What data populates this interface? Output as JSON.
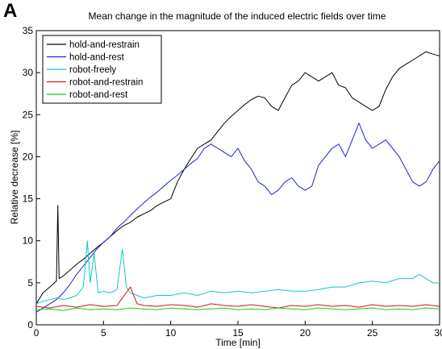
{
  "panel_label": "A",
  "chart_data": {
    "type": "line",
    "title": "Mean change in the magnitude of the induced electric fields over time",
    "xlabel": "Time [min]",
    "ylabel": "Relative decrease [%]",
    "xlim": [
      0,
      30
    ],
    "ylim": [
      0,
      35
    ],
    "xticks": [
      0,
      5,
      10,
      15,
      20,
      25,
      30
    ],
    "yticks": [
      0,
      5,
      10,
      15,
      20,
      25,
      30,
      35
    ],
    "grid": false,
    "legend_position": "top-left",
    "series": [
      {
        "name": "hold-and-restrain",
        "color": "#000000",
        "x": [
          0,
          0.5,
          1,
          1.5,
          1.6,
          1.7,
          2,
          2.5,
          3,
          3.5,
          4,
          4.5,
          5,
          5.5,
          6,
          6.5,
          7,
          7.5,
          8,
          8.5,
          9,
          9.5,
          10,
          10.5,
          11,
          11.5,
          12,
          12.5,
          13,
          13.5,
          14,
          14.5,
          15,
          15.5,
          16,
          16.5,
          17,
          17.5,
          18,
          18.5,
          19,
          19.5,
          20,
          20.5,
          21,
          21.5,
          22,
          22.5,
          23,
          23.5,
          24,
          24.5,
          25,
          25.5,
          26,
          26.5,
          27,
          27.5,
          28,
          28.5,
          29,
          29.5,
          30
        ],
        "y": [
          2.5,
          3.8,
          4.5,
          5.2,
          14.2,
          5.5,
          5.8,
          6.5,
          7.2,
          7.8,
          8.5,
          9.2,
          9.8,
          10.5,
          11.2,
          11.8,
          12.2,
          12.8,
          13.2,
          13.6,
          14.2,
          14.6,
          15.0,
          17.0,
          18.5,
          19.8,
          21.0,
          21.5,
          22.0,
          23.0,
          24.0,
          24.8,
          25.5,
          26.2,
          26.8,
          27.2,
          27.0,
          26.0,
          25.5,
          27.0,
          28.5,
          29.0,
          30.0,
          29.5,
          29.0,
          29.5,
          30.0,
          28.5,
          28.2,
          27.0,
          26.5,
          26.0,
          25.5,
          26.0,
          28.0,
          29.5,
          30.5,
          31.0,
          31.5,
          32.0,
          32.5,
          32.2,
          32.0
        ]
      },
      {
        "name": "hold-and-rest",
        "color": "#2020d0",
        "x": [
          0,
          0.5,
          1,
          1.5,
          2,
          2.5,
          3,
          3.5,
          4,
          4.5,
          5,
          5.5,
          6,
          6.5,
          7,
          7.5,
          8,
          8.5,
          9,
          9.5,
          10,
          10.5,
          11,
          11.5,
          12,
          12.5,
          13,
          13.5,
          14,
          14.5,
          15,
          15.5,
          16,
          16.5,
          17,
          17.5,
          18,
          18.5,
          19,
          19.5,
          20,
          20.5,
          21,
          21.5,
          22,
          22.5,
          23,
          23.5,
          24,
          24.5,
          25,
          25.5,
          26,
          26.5,
          27,
          27.5,
          28,
          28.5,
          29,
          29.5,
          30
        ],
        "y": [
          1.5,
          2.0,
          2.5,
          3.0,
          3.8,
          4.8,
          6.0,
          7.0,
          8.0,
          9.0,
          9.8,
          10.5,
          11.5,
          12.2,
          13.0,
          13.8,
          14.5,
          15.2,
          15.8,
          16.5,
          17.2,
          17.8,
          18.5,
          19.2,
          19.8,
          21.0,
          21.5,
          21.0,
          20.5,
          20.0,
          21.0,
          19.5,
          18.5,
          17.0,
          16.5,
          15.5,
          16.0,
          17.0,
          17.5,
          16.5,
          16.0,
          16.5,
          19.0,
          20.0,
          21.0,
          21.5,
          20.0,
          22.0,
          24.0,
          22.0,
          21.0,
          21.5,
          22.0,
          21.0,
          20.0,
          18.5,
          17.0,
          16.5,
          17.0,
          18.5,
          19.5
        ]
      },
      {
        "name": "robot-freely",
        "color": "#10c8c8",
        "x": [
          0,
          0.5,
          1,
          1.5,
          2,
          2.5,
          3,
          3.5,
          3.8,
          4.0,
          4.3,
          4.6,
          5,
          5.5,
          6,
          6.4,
          6.7,
          7,
          7.5,
          8,
          9,
          10,
          11,
          12,
          13,
          14,
          15,
          16,
          17,
          18,
          19,
          20,
          21,
          22,
          23,
          24,
          25,
          26,
          27,
          28,
          28.5,
          29,
          29.5,
          30
        ],
        "y": [
          2.5,
          2.8,
          3.0,
          3.2,
          3.0,
          3.2,
          3.5,
          4.5,
          10.0,
          5.0,
          8.5,
          3.8,
          4.0,
          3.8,
          4.2,
          9.0,
          4.5,
          3.8,
          3.5,
          3.2,
          3.5,
          3.5,
          3.8,
          3.5,
          4.0,
          3.8,
          4.0,
          3.8,
          4.0,
          4.2,
          4.0,
          4.0,
          4.2,
          4.5,
          4.5,
          5.0,
          5.2,
          5.0,
          5.5,
          5.5,
          6.0,
          5.5,
          5.0,
          5.0
        ]
      },
      {
        "name": "robot-and-restrain",
        "color": "#e01010",
        "x": [
          0,
          1,
          2,
          3,
          4,
          5,
          6,
          7,
          7.5,
          8,
          9,
          10,
          11,
          12,
          13,
          14,
          15,
          16,
          17,
          18,
          19,
          20,
          21,
          22,
          23,
          24,
          25,
          26,
          27,
          28,
          29,
          30
        ],
        "y": [
          2.2,
          2.0,
          2.3,
          2.1,
          2.4,
          2.2,
          2.3,
          4.5,
          2.5,
          2.3,
          2.2,
          2.4,
          2.3,
          2.1,
          2.5,
          2.3,
          2.2,
          2.4,
          2.2,
          2.0,
          2.3,
          2.2,
          2.4,
          2.2,
          2.3,
          2.1,
          2.4,
          2.2,
          2.3,
          2.2,
          2.4,
          2.2
        ]
      },
      {
        "name": "robot-and-rest",
        "color": "#10d010",
        "x": [
          0,
          1,
          2,
          3,
          4,
          5,
          6,
          7,
          8,
          9,
          10,
          11,
          12,
          13,
          14,
          15,
          16,
          17,
          18,
          19,
          20,
          21,
          22,
          23,
          24,
          25,
          26,
          27,
          28,
          29,
          30
        ],
        "y": [
          1.8,
          1.9,
          1.7,
          2.0,
          1.8,
          1.9,
          1.8,
          2.0,
          1.9,
          1.8,
          2.0,
          1.9,
          1.8,
          1.9,
          2.0,
          1.8,
          1.9,
          1.8,
          2.0,
          1.9,
          1.8,
          2.0,
          1.9,
          1.8,
          1.9,
          2.0,
          1.8,
          1.9,
          1.8,
          2.0,
          1.9
        ]
      }
    ]
  }
}
